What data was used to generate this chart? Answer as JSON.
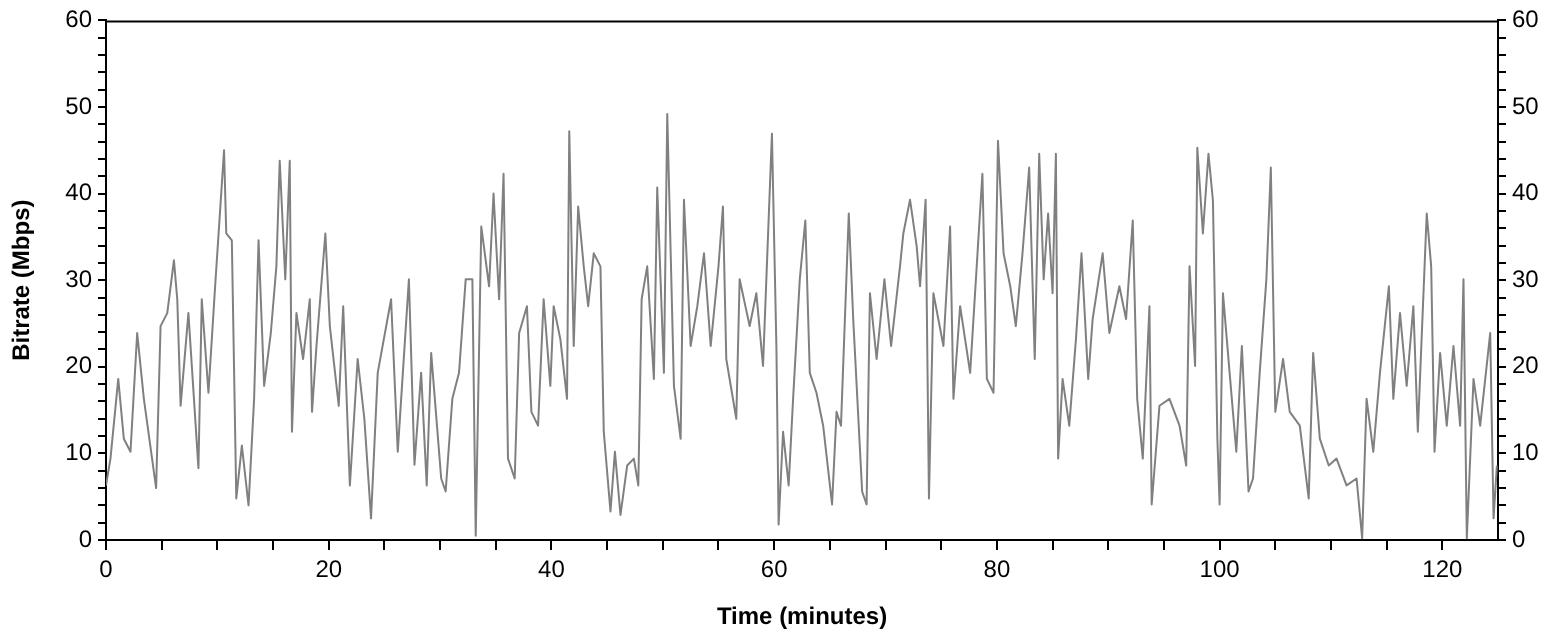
{
  "chart_data": {
    "type": "line",
    "xlabel": "Time (minutes)",
    "ylabel": "Bitrate (Mbps)",
    "line_style": "solid",
    "marker": "none",
    "grid": false,
    "legend": false,
    "xlim": [
      0,
      125
    ],
    "xticks": [
      0,
      {
        "value": 5,
        "label": null
      },
      {
        "value": 10,
        "label": null
      },
      {
        "value": 15,
        "label": null
      },
      20,
      {
        "value": 25,
        "label": null
      },
      {
        "value": 30,
        "label": null
      },
      {
        "value": 35,
        "label": null
      },
      40,
      {
        "value": 45,
        "label": null
      },
      {
        "value": 50,
        "label": null
      },
      {
        "value": 55,
        "label": null
      },
      60,
      {
        "value": 65,
        "label": null
      },
      {
        "value": 70,
        "label": null
      },
      {
        "value": 75,
        "label": null
      },
      80,
      {
        "value": 85,
        "label": null
      },
      {
        "value": 90,
        "label": null
      },
      {
        "value": 95,
        "label": null
      },
      100,
      {
        "value": 105,
        "label": null
      },
      {
        "value": 110,
        "label": null
      },
      {
        "value": 115,
        "label": null
      },
      120
    ],
    "ylim": [
      0,
      60
    ],
    "yticks": [
      0,
      {
        "value": 2,
        "label": null
      },
      {
        "value": 4,
        "label": null
      },
      {
        "value": 6,
        "label": null
      },
      {
        "value": 8,
        "label": null
      },
      10,
      {
        "value": 12,
        "label": null
      },
      {
        "value": 14,
        "label": null
      },
      {
        "value": 16,
        "label": null
      },
      {
        "value": 18,
        "label": null
      },
      20,
      {
        "value": 22,
        "label": null
      },
      {
        "value": 24,
        "label": null
      },
      {
        "value": 26,
        "label": null
      },
      {
        "value": 28,
        "label": null
      },
      30,
      {
        "value": 32,
        "label": null
      },
      {
        "value": 34,
        "label": null
      },
      {
        "value": 36,
        "label": null
      },
      {
        "value": 38,
        "label": null
      },
      40,
      {
        "value": 42,
        "label": null
      },
      {
        "value": 44,
        "label": null
      },
      {
        "value": 46,
        "label": null
      },
      {
        "value": 48,
        "label": null
      },
      50,
      {
        "value": 52,
        "label": null
      },
      {
        "value": 54,
        "label": null
      },
      {
        "value": 56,
        "label": null
      },
      {
        "value": 58,
        "label": null
      },
      60
    ],
    "y2lim": [
      0,
      60
    ],
    "y2ticks": [
      0,
      {
        "value": 2,
        "label": null
      },
      {
        "value": 4,
        "label": null
      },
      {
        "value": 6,
        "label": null
      },
      {
        "value": 8,
        "label": null
      },
      10,
      {
        "value": 12,
        "label": null
      },
      {
        "value": 14,
        "label": null
      },
      {
        "value": 16,
        "label": null
      },
      {
        "value": 18,
        "label": null
      },
      20,
      {
        "value": 22,
        "label": null
      },
      {
        "value": 24,
        "label": null
      },
      {
        "value": 26,
        "label": null
      },
      {
        "value": 28,
        "label": null
      },
      30,
      {
        "value": 32,
        "label": null
      },
      {
        "value": 34,
        "label": null
      },
      {
        "value": 36,
        "label": null
      },
      {
        "value": 38,
        "label": null
      },
      40,
      {
        "value": 42,
        "label": null
      },
      {
        "value": 44,
        "label": null
      },
      {
        "value": 46,
        "label": null
      },
      {
        "value": 48,
        "label": null
      },
      50,
      {
        "value": 52,
        "label": null
      },
      {
        "value": 54,
        "label": null
      },
      {
        "value": 56,
        "label": null
      },
      {
        "value": 58,
        "label": null
      },
      60
    ],
    "series": [
      {
        "color": "#808080",
        "x": [
          0,
          0.4,
          1.1,
          1.6,
          2.2,
          2.8,
          3.4,
          4.5,
          4.9,
          5.5,
          6.1,
          6.4,
          6.7,
          7.4,
          8.3,
          8.6,
          9.2,
          9.8,
          10.6,
          10.8,
          11.3,
          11.7,
          12.2,
          12.8,
          13.3,
          13.7,
          14.2,
          14.8,
          15.3,
          15.6,
          16.1,
          16.5,
          16.7,
          17.1,
          17.7,
          18.3,
          18.5,
          18.9,
          19.7,
          20.1,
          20.9,
          21.3,
          21.9,
          22.6,
          23.2,
          23.8,
          24.4,
          25.6,
          26.2,
          27.2,
          27.7,
          28.3,
          28.8,
          29.2,
          30.1,
          30.5,
          31.1,
          31.7,
          32.3,
          32.9,
          33.2,
          33.7,
          34.4,
          34.8,
          35.3,
          35.7,
          36.1,
          36.7,
          37.1,
          37.8,
          38.2,
          38.8,
          39.3,
          39.9,
          40.2,
          40.8,
          41.4,
          41.6,
          42,
          42.4,
          42.9,
          43.3,
          43.8,
          44.4,
          44.7,
          45.3,
          45.7,
          46.2,
          46.8,
          47.4,
          47.8,
          48.1,
          48.6,
          49.2,
          49.5,
          50.1,
          50.4,
          51,
          51.6,
          51.9,
          52.5,
          53.1,
          53.7,
          54.3,
          55,
          55.4,
          55.7,
          56.6,
          56.9,
          57.8,
          58.4,
          59,
          59.8,
          60.2,
          60.4,
          60.8,
          61.3,
          61.7,
          62.3,
          62.8,
          63.2,
          63.8,
          64.4,
          65.2,
          65.6,
          66,
          66.7,
          67.1,
          67.9,
          68.3,
          68.6,
          69.2,
          69.9,
          70.5,
          71.3,
          71.6,
          72.2,
          72.8,
          73.1,
          73.6,
          73.9,
          74.3,
          75.2,
          75.8,
          76.1,
          76.7,
          77.6,
          78.7,
          79.1,
          79.7,
          80.1,
          80.6,
          81.2,
          81.7,
          82.3,
          82.9,
          83.4,
          83.8,
          84.2,
          84.6,
          85,
          85.3,
          85.5,
          85.9,
          86.5,
          87.1,
          87.6,
          88.2,
          88.6,
          89.5,
          90.1,
          91,
          91.6,
          92.2,
          92.6,
          93.1,
          93.7,
          93.9,
          94.6,
          95.5,
          96.4,
          97,
          97.3,
          97.8,
          98,
          98.5,
          99,
          99.4,
          99.8,
          100,
          100.3,
          100.9,
          101.5,
          102,
          102.6,
          103,
          103.6,
          104.2,
          104.6,
          105,
          105.7,
          106.3,
          107.2,
          108,
          108.4,
          109,
          109.8,
          110.5,
          111.4,
          112.3,
          112.8,
          113.2,
          113.8,
          114.4,
          115.2,
          115.6,
          116.2,
          116.8,
          117.4,
          117.8,
          118.6,
          119,
          119.3,
          119.8,
          120.4,
          121,
          121.6,
          121.9,
          122.2,
          122.8,
          123.4,
          124.3,
          124.6,
          124.9
        ],
        "values": [
          6.3,
          9.4,
          18.6,
          11.7,
          10.2,
          23.9,
          16.3,
          6,
          24.7,
          26.2,
          32.3,
          27.8,
          15.5,
          26.2,
          8.3,
          27.8,
          17,
          29.3,
          45,
          35.4,
          34.6,
          4.8,
          10.9,
          4,
          16.3,
          34.6,
          17.8,
          23.9,
          31.6,
          43.8,
          30.1,
          43.8,
          12.5,
          26.2,
          20.9,
          27.8,
          14.8,
          22.4,
          35.4,
          24.7,
          15.5,
          27,
          6.3,
          20.9,
          14,
          2.5,
          19.3,
          27.8,
          10.2,
          30.1,
          8.7,
          19.3,
          6.3,
          21.6,
          7.1,
          5.6,
          16.3,
          19.3,
          30.1,
          30.1,
          0.5,
          36.2,
          29.3,
          40,
          27.8,
          42.3,
          9.4,
          7.1,
          23.9,
          27,
          14.8,
          13.2,
          27.8,
          17.8,
          27,
          23.2,
          16.3,
          47.2,
          22.4,
          38.5,
          31.6,
          27,
          33.1,
          31.6,
          12.5,
          3.3,
          10.2,
          2.9,
          8.6,
          9.4,
          6.3,
          27.8,
          31.6,
          18.6,
          40.7,
          19.3,
          49.2,
          17.8,
          11.7,
          39.3,
          22.4,
          27,
          33.1,
          22.4,
          31.6,
          38.5,
          20.9,
          14,
          30.1,
          24.7,
          28.5,
          20.1,
          46.9,
          22.4,
          1.8,
          12.5,
          6.3,
          16.3,
          30.1,
          36.9,
          19.3,
          17,
          13.2,
          4.1,
          14.8,
          13.2,
          37.7,
          25.5,
          5.6,
          4.1,
          28.5,
          20.9,
          30.1,
          22.4,
          31.6,
          35.4,
          39.3,
          33.9,
          29.3,
          39.3,
          4.8,
          28.5,
          22.4,
          36.2,
          16.3,
          27,
          19.3,
          42.3,
          18.6,
          17,
          46.1,
          33.1,
          29.3,
          24.7,
          33.1,
          43,
          20.9,
          44.6,
          30.1,
          37.7,
          28.5,
          44.6,
          9.4,
          18.6,
          13.2,
          23.2,
          33.1,
          18.6,
          25.5,
          33.1,
          23.9,
          29.3,
          25.5,
          36.9,
          16.3,
          9.4,
          27,
          4.1,
          15.5,
          16.3,
          13.2,
          8.6,
          31.6,
          20.1,
          45.3,
          35.4,
          44.6,
          39.2,
          11.7,
          4.1,
          28.5,
          19.3,
          10.2,
          22.4,
          5.6,
          7.1,
          19.3,
          30.1,
          43,
          14.8,
          20.9,
          14.8,
          13.2,
          4.8,
          21.6,
          11.7,
          8.6,
          9.4,
          6.3,
          7.1,
          0.2,
          16.3,
          10.2,
          19.3,
          29.3,
          16.3,
          26.2,
          17.8,
          27,
          12.5,
          37.7,
          31.6,
          10.2,
          21.6,
          13.2,
          22.4,
          13.2,
          30.1,
          0.2,
          18.6,
          13.2,
          23.9,
          2.5,
          8.6
        ]
      }
    ]
  }
}
